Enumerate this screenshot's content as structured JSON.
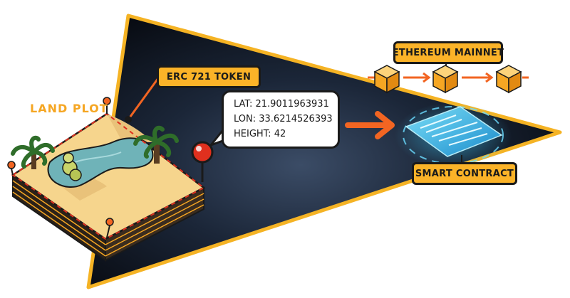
{
  "land_plot": {
    "title": "LAND PLOT"
  },
  "token": {
    "label": "ERC 721 TOKEN"
  },
  "coordinates": {
    "lat": "LAT: 21.9011963931",
    "lon": "LON: 33.6214526393",
    "height": "HEIGHT: 42"
  },
  "network": {
    "label": "ETHEREUM MAINNET",
    "block_count": 3
  },
  "contract": {
    "label": "SMART CONTRACT"
  },
  "colors": {
    "accent": "#f26522",
    "label_fill": "#fbb328",
    "outline": "#1a1a1a",
    "triangle_dark": "#050810",
    "triangle_glow": "#2e3e55",
    "water": "#6fb3b8",
    "sand": "#f6d58d",
    "hologram": "#38c8f0"
  }
}
